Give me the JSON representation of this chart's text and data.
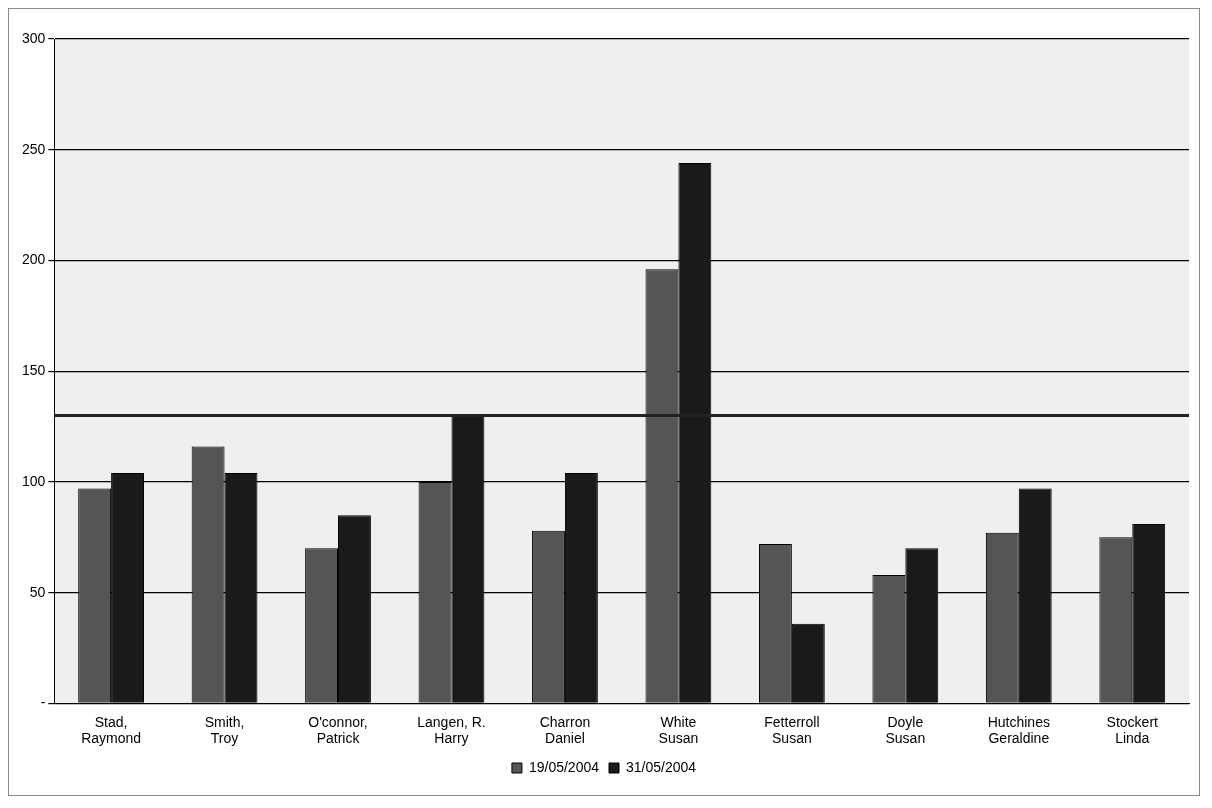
{
  "chart_data": {
    "type": "bar",
    "categories": [
      "Stad, Raymond",
      "Smith, Troy",
      "O'connor, Patrick",
      "Langen, R. Harry",
      "Charron Daniel",
      "White Susan",
      "Fetterroll Susan",
      "Doyle Susan",
      "Hutchines Geraldine",
      "Stockert Linda"
    ],
    "series": [
      {
        "name": "19/05/2004",
        "color": "#555555",
        "values": [
          97,
          116,
          70,
          100,
          78,
          196,
          72,
          58,
          77,
          75
        ]
      },
      {
        "name": "31/05/2004",
        "color": "#1a1a1a",
        "values": [
          104,
          104,
          85,
          130,
          104,
          244,
          36,
          70,
          97,
          81
        ]
      }
    ],
    "ylim": [
      0,
      300
    ],
    "yticks": [
      {
        "value": 0,
        "label": "-"
      },
      50,
      100,
      150,
      200,
      250,
      300
    ],
    "grid": "y",
    "legend": "bottom",
    "ref_lines": [
      {
        "axis": "y",
        "value": 130,
        "label": null,
        "color": "#222222"
      }
    ]
  }
}
